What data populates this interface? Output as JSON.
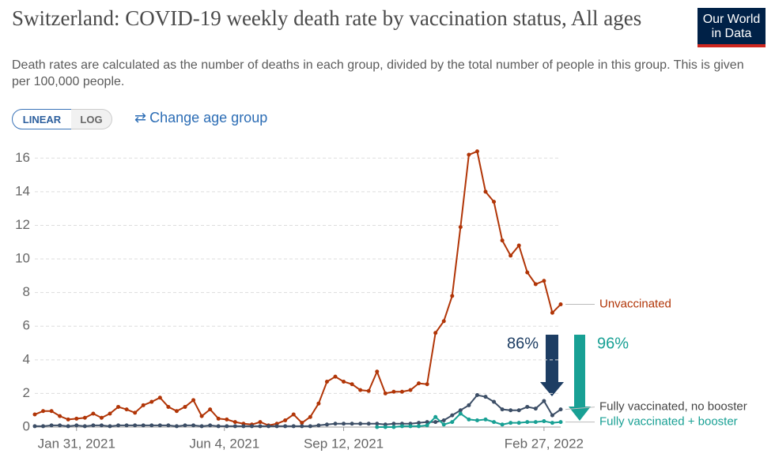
{
  "chart_data": {
    "type": "line",
    "title": "Switzerland: COVID-19 weekly death rate by vaccination status, All ages",
    "subtitle": "Death rates are calculated as the number of deaths in each group, divided by the total number of people in this group. This is given per 100,000 people.",
    "logo": [
      "Our World",
      "in Data"
    ],
    "buttons": [
      "LINEAR",
      "LOG"
    ],
    "link": "Change age group",
    "x": [
      "2020-12-27",
      "2021-01-03",
      "2021-01-10",
      "2021-01-17",
      "2021-01-24",
      "2021-01-31",
      "2021-02-07",
      "2021-02-14",
      "2021-02-21",
      "2021-02-28",
      "2021-03-07",
      "2021-03-14",
      "2021-03-21",
      "2021-03-28",
      "2021-04-04",
      "2021-04-11",
      "2021-04-18",
      "2021-04-25",
      "2021-05-02",
      "2021-05-09",
      "2021-05-16",
      "2021-05-23",
      "2021-05-30",
      "2021-06-06",
      "2021-06-13",
      "2021-06-20",
      "2021-06-27",
      "2021-07-04",
      "2021-07-11",
      "2021-07-18",
      "2021-07-25",
      "2021-08-01",
      "2021-08-08",
      "2021-08-15",
      "2021-08-22",
      "2021-08-29",
      "2021-09-05",
      "2021-09-12",
      "2021-09-19",
      "2021-09-26",
      "2021-10-03",
      "2021-10-10",
      "2021-10-17",
      "2021-10-24",
      "2021-10-31",
      "2021-11-07",
      "2021-11-14",
      "2021-11-21",
      "2021-11-28",
      "2021-12-05",
      "2021-12-12",
      "2021-12-19",
      "2021-12-26",
      "2022-01-02",
      "2022-01-09",
      "2022-01-16",
      "2022-01-23",
      "2022-01-30",
      "2022-02-06",
      "2022-02-13",
      "2022-02-20",
      "2022-02-27",
      "2022-03-06",
      "2022-03-13"
    ],
    "xlim": [
      "2020-12-27",
      "2022-03-13"
    ],
    "xticks": [
      {
        "value": "2021-01-31",
        "label": "Jan 31, 2021"
      },
      {
        "value": "2021-06-04",
        "label": "Jun 4, 2021"
      },
      {
        "value": "2021-09-12",
        "label": "Sep 12, 2021"
      },
      {
        "value": "2022-02-27",
        "label": "Feb 27, 2022"
      }
    ],
    "ylim": [
      0,
      17
    ],
    "yticks": [
      0,
      2,
      4,
      6,
      8,
      10,
      12,
      14,
      16
    ],
    "grid": true,
    "series": [
      {
        "name": "Unvaccinated",
        "color": "#b13507",
        "values": [
          0.75,
          0.95,
          0.95,
          0.65,
          0.45,
          0.5,
          0.55,
          0.8,
          0.55,
          0.8,
          1.2,
          1.05,
          0.85,
          1.3,
          1.5,
          1.75,
          1.2,
          0.95,
          1.2,
          1.6,
          0.65,
          1.05,
          0.5,
          0.45,
          0.3,
          0.2,
          0.15,
          0.3,
          0.1,
          0.2,
          0.4,
          0.75,
          0.25,
          0.6,
          1.4,
          2.7,
          3.0,
          2.7,
          2.55,
          2.2,
          2.15,
          3.3,
          2.0,
          2.1,
          2.1,
          2.2,
          2.6,
          2.55,
          5.6,
          6.3,
          7.8,
          11.9,
          16.2,
          16.4,
          14.0,
          13.4,
          11.1,
          10.2,
          10.8,
          9.2,
          8.5,
          8.7,
          6.8,
          7.3
        ]
      },
      {
        "name": "Fully vaccinated, no booster",
        "color": "#3c4e66",
        "values": [
          0.05,
          0.05,
          0.1,
          0.1,
          0.05,
          0.1,
          0.05,
          0.1,
          0.1,
          0.05,
          0.1,
          0.1,
          0.1,
          0.1,
          0.1,
          0.1,
          0.1,
          0.05,
          0.1,
          0.1,
          0.05,
          0.1,
          0.05,
          0.05,
          0.05,
          0.05,
          0.05,
          0.05,
          0.05,
          0.05,
          0.05,
          0.05,
          0.05,
          0.05,
          0.1,
          0.15,
          0.2,
          0.2,
          0.2,
          0.2,
          0.2,
          0.2,
          0.15,
          0.2,
          0.2,
          0.2,
          0.25,
          0.3,
          0.3,
          0.4,
          0.7,
          1.0,
          1.3,
          1.9,
          1.8,
          1.5,
          1.05,
          1.0,
          1.0,
          1.2,
          1.1,
          1.55,
          0.7,
          1.05
        ]
      },
      {
        "name": "Fully vaccinated + booster",
        "color": "#18a094",
        "values": [
          null,
          null,
          null,
          null,
          null,
          null,
          null,
          null,
          null,
          null,
          null,
          null,
          null,
          null,
          null,
          null,
          null,
          null,
          null,
          null,
          null,
          null,
          null,
          null,
          null,
          null,
          null,
          null,
          null,
          null,
          null,
          null,
          null,
          null,
          null,
          null,
          null,
          null,
          null,
          null,
          null,
          0.0,
          0.0,
          0.0,
          0.05,
          0.05,
          0.05,
          0.1,
          0.6,
          0.15,
          0.3,
          0.8,
          0.45,
          0.4,
          0.45,
          0.3,
          0.15,
          0.25,
          0.25,
          0.3,
          0.3,
          0.35,
          0.25,
          0.3
        ]
      }
    ],
    "annotations": [
      {
        "text": "86%",
        "color": "#1d3d63"
      },
      {
        "text": "96%",
        "color": "#18a094"
      }
    ]
  }
}
